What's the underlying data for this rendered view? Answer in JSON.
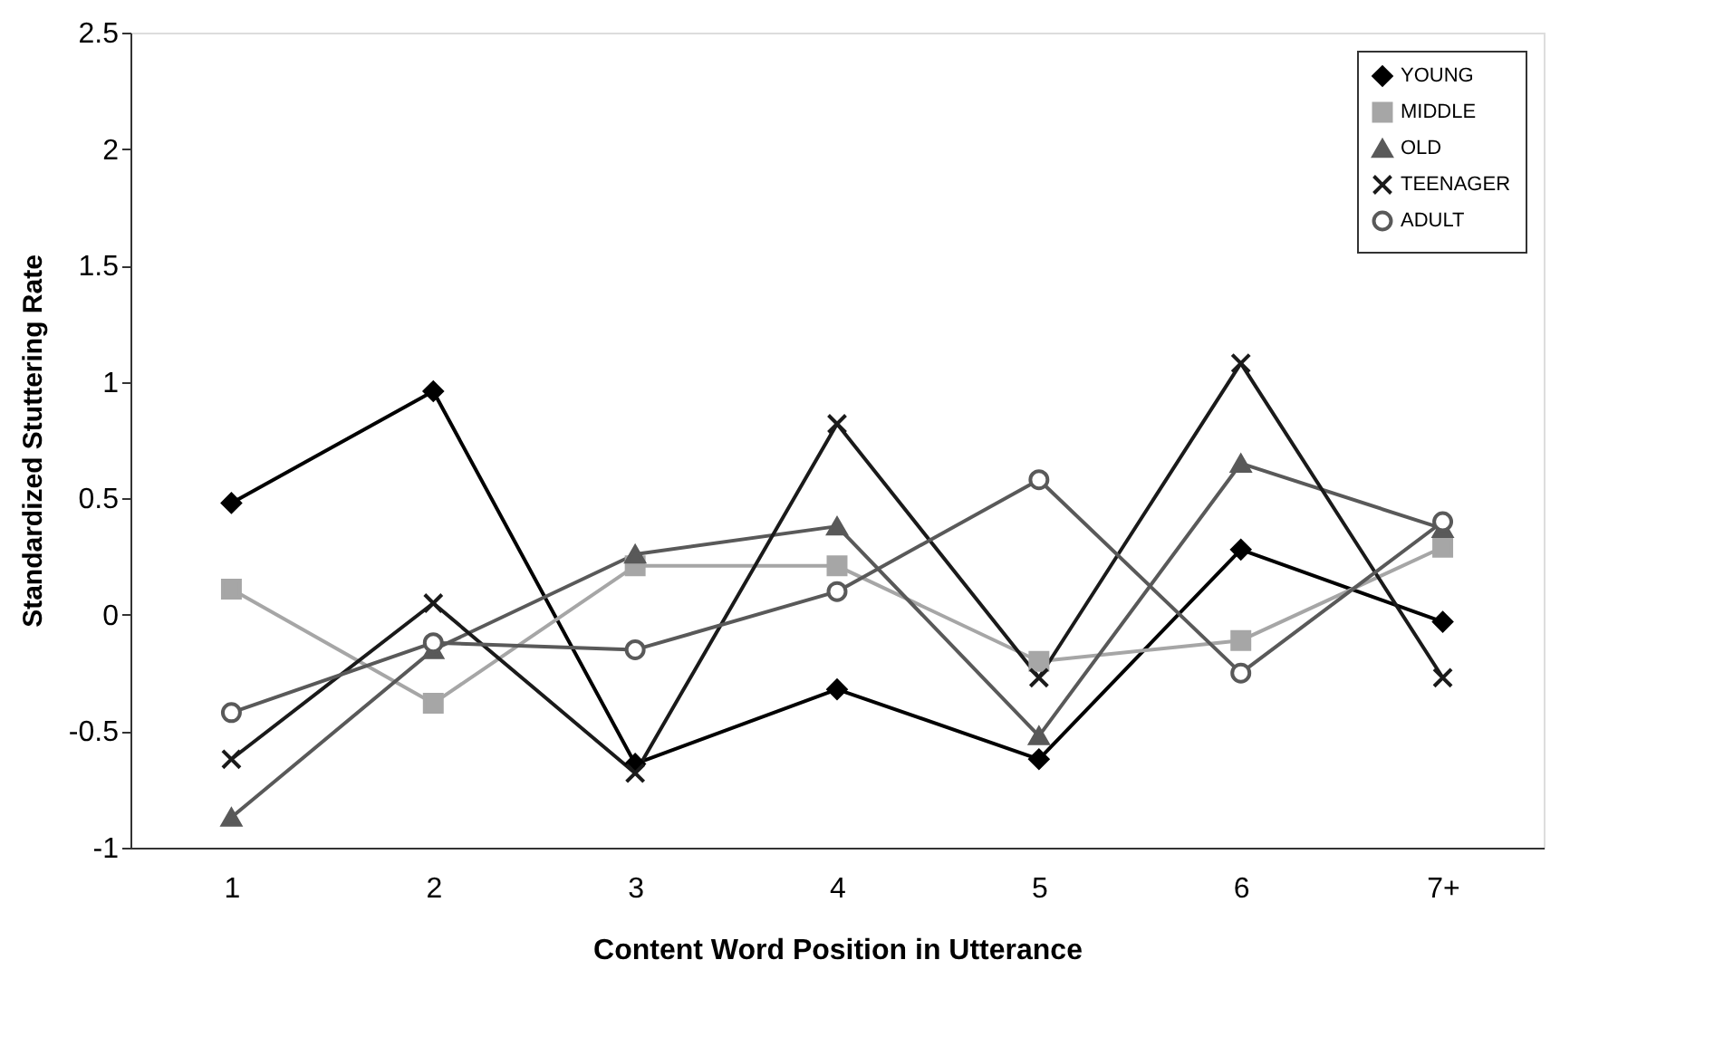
{
  "chart_data": {
    "type": "line",
    "xlabel": "Content Word Position in Utterance",
    "ylabel": "Standardized Stuttering Rate",
    "categories": [
      "1",
      "2",
      "3",
      "4",
      "5",
      "6",
      "7+"
    ],
    "ylim": [
      -1,
      2.5
    ],
    "yticks": [
      -1,
      -0.5,
      0,
      0.5,
      1,
      1.5,
      2,
      2.5
    ],
    "grid": false,
    "legend": "top right",
    "line_style": "solid",
    "series": [
      {
        "name": "YOUNG",
        "color": "#000000",
        "marker": "diamond",
        "values": [
          0.48,
          0.96,
          -0.64,
          -0.32,
          -0.62,
          0.28,
          -0.03
        ]
      },
      {
        "name": "MIDDLE",
        "color": "#a6a6a6",
        "marker": "square",
        "values": [
          0.11,
          -0.38,
          0.21,
          0.21,
          -0.2,
          -0.11,
          0.29
        ]
      },
      {
        "name": "OLD",
        "color": "#595959",
        "marker": "triangle",
        "values": [
          -0.87,
          -0.15,
          0.26,
          0.38,
          -0.52,
          0.65,
          0.37
        ]
      },
      {
        "name": "TEENAGER",
        "color": "#1a1a1a",
        "marker": "cross",
        "values": [
          -0.62,
          0.05,
          -0.68,
          0.82,
          -0.27,
          1.08,
          -0.27
        ]
      },
      {
        "name": "ADULT",
        "color": "#595959",
        "marker": "circle",
        "values": [
          -0.42,
          -0.12,
          -0.15,
          0.1,
          0.58,
          -0.25,
          0.4
        ]
      }
    ]
  }
}
